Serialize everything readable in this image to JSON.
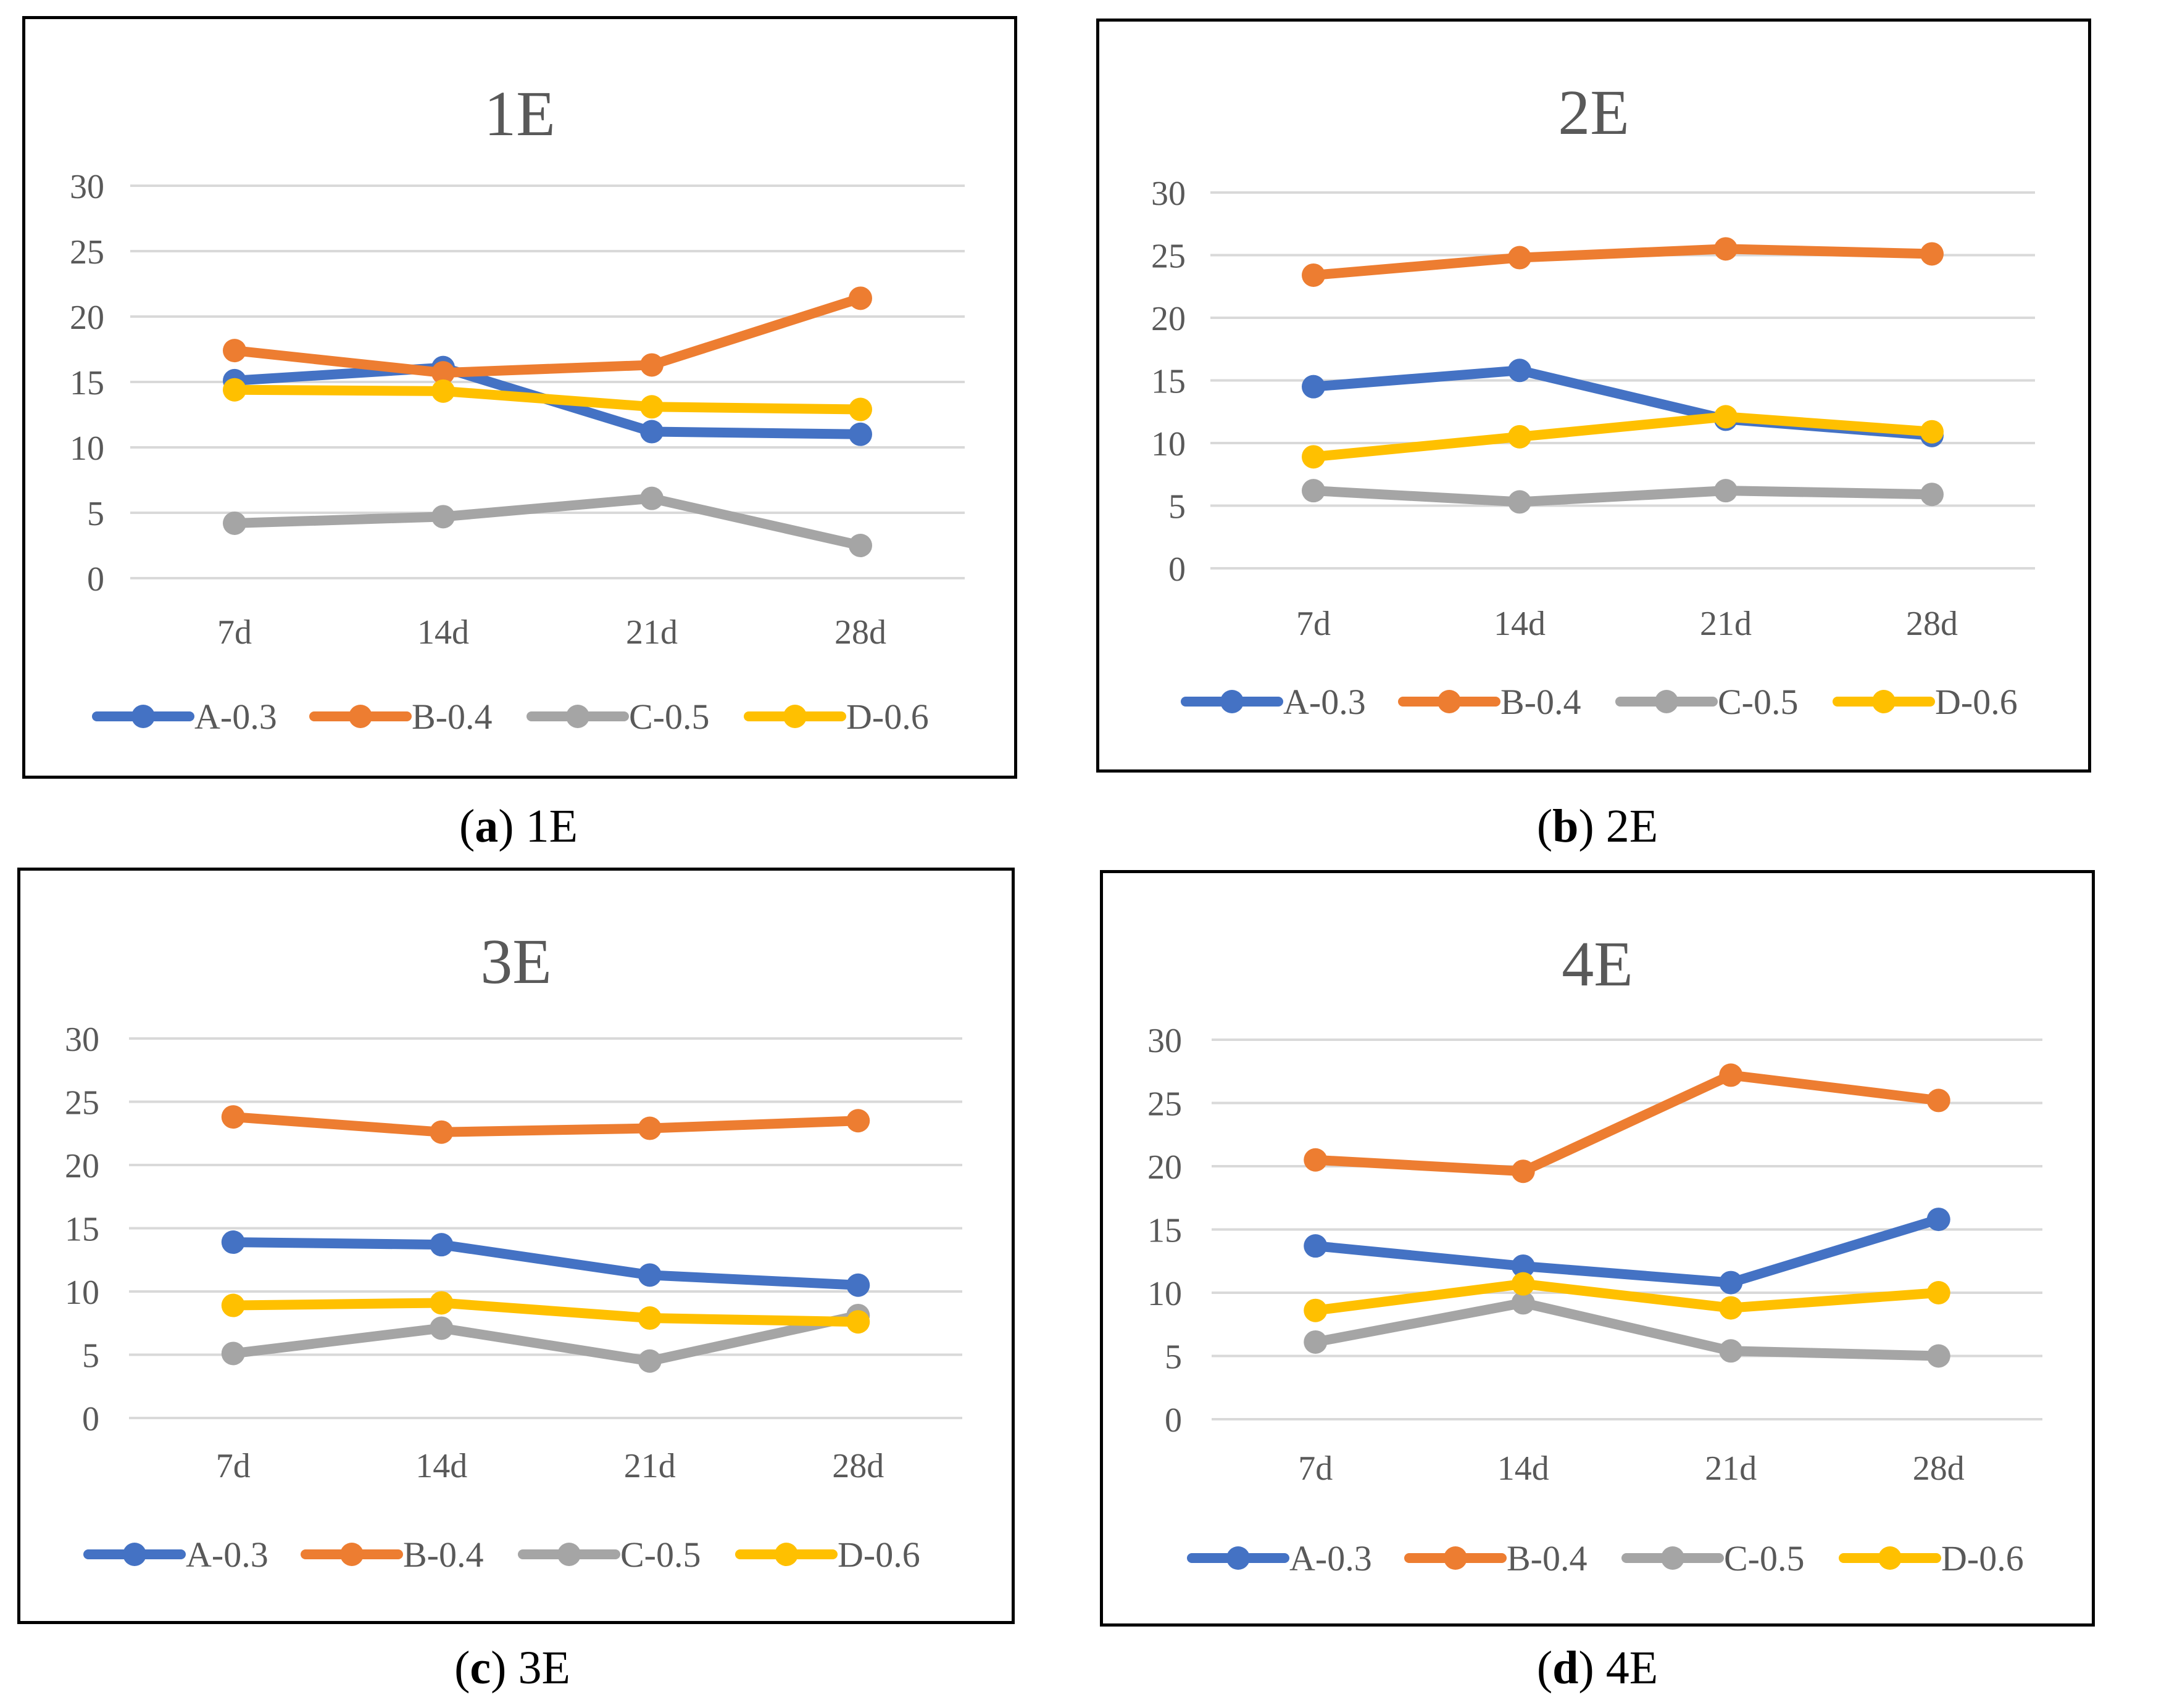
{
  "colors": {
    "A": "#4472C4",
    "B": "#ED7D31",
    "C": "#A5A5A5",
    "D": "#FFC000",
    "grid": "#D9D9D9",
    "text": "#595959"
  },
  "chart_data": [
    {
      "type": "line",
      "title": "1E",
      "caption_letter": "a",
      "caption_text": "1E",
      "categories": [
        "7d",
        "14d",
        "21d",
        "28d"
      ],
      "ylim": [
        0,
        30
      ],
      "yticks": [
        0,
        5,
        10,
        15,
        20,
        25,
        30
      ],
      "grid": true,
      "legend": "bottom",
      "series": [
        {
          "name": "A-0.3",
          "color_key": "A",
          "values": [
            15.1,
            16.1,
            11.2,
            11.0
          ]
        },
        {
          "name": "B-0.4",
          "color_key": "B",
          "values": [
            17.4,
            15.7,
            16.3,
            21.4
          ]
        },
        {
          "name": "C-0.5",
          "color_key": "C",
          "values": [
            4.2,
            4.7,
            6.1,
            2.5
          ]
        },
        {
          "name": "D-0.6",
          "color_key": "D",
          "values": [
            14.4,
            14.3,
            13.1,
            12.9
          ]
        }
      ]
    },
    {
      "type": "line",
      "title": "2E",
      "caption_letter": "b",
      "caption_text": "2E",
      "categories": [
        "7d",
        "14d",
        "21d",
        "28d"
      ],
      "ylim": [
        0,
        30
      ],
      "yticks": [
        0,
        5,
        10,
        15,
        20,
        25,
        30
      ],
      "grid": true,
      "legend": "bottom",
      "series": [
        {
          "name": "A-0.3",
          "color_key": "A",
          "values": [
            14.5,
            15.8,
            11.9,
            10.6
          ]
        },
        {
          "name": "B-0.4",
          "color_key": "B",
          "values": [
            23.4,
            24.8,
            25.5,
            25.1
          ]
        },
        {
          "name": "C-0.5",
          "color_key": "C",
          "values": [
            6.2,
            5.3,
            6.2,
            5.9
          ]
        },
        {
          "name": "D-0.6",
          "color_key": "D",
          "values": [
            8.9,
            10.5,
            12.1,
            10.9
          ]
        }
      ]
    },
    {
      "type": "line",
      "title": "3E",
      "caption_letter": "c",
      "caption_text": "3E",
      "categories": [
        "7d",
        "14d",
        "21d",
        "28d"
      ],
      "ylim": [
        0,
        30
      ],
      "yticks": [
        0,
        5,
        10,
        15,
        20,
        25,
        30
      ],
      "grid": true,
      "legend": "bottom",
      "series": [
        {
          "name": "A-0.3",
          "color_key": "A",
          "values": [
            13.9,
            13.7,
            11.3,
            10.5
          ]
        },
        {
          "name": "B-0.4",
          "color_key": "B",
          "values": [
            23.8,
            22.6,
            22.9,
            23.5
          ]
        },
        {
          "name": "C-0.5",
          "color_key": "C",
          "values": [
            5.1,
            7.1,
            4.5,
            8.1
          ]
        },
        {
          "name": "D-0.6",
          "color_key": "D",
          "values": [
            8.9,
            9.1,
            7.9,
            7.6
          ]
        }
      ]
    },
    {
      "type": "line",
      "title": "4E",
      "caption_letter": "d",
      "caption_text": "4E",
      "categories": [
        "7d",
        "14d",
        "21d",
        "28d"
      ],
      "ylim": [
        0,
        30
      ],
      "yticks": [
        0,
        5,
        10,
        15,
        20,
        25,
        30
      ],
      "grid": true,
      "legend": "bottom",
      "series": [
        {
          "name": "A-0.3",
          "color_key": "A",
          "values": [
            13.7,
            12.1,
            10.8,
            15.8
          ]
        },
        {
          "name": "B-0.4",
          "color_key": "B",
          "values": [
            20.5,
            19.6,
            27.2,
            25.2
          ]
        },
        {
          "name": "C-0.5",
          "color_key": "C",
          "values": [
            6.1,
            9.2,
            5.4,
            5.0
          ]
        },
        {
          "name": "D-0.6",
          "color_key": "D",
          "values": [
            8.6,
            10.7,
            8.8,
            10.0
          ]
        }
      ]
    }
  ]
}
